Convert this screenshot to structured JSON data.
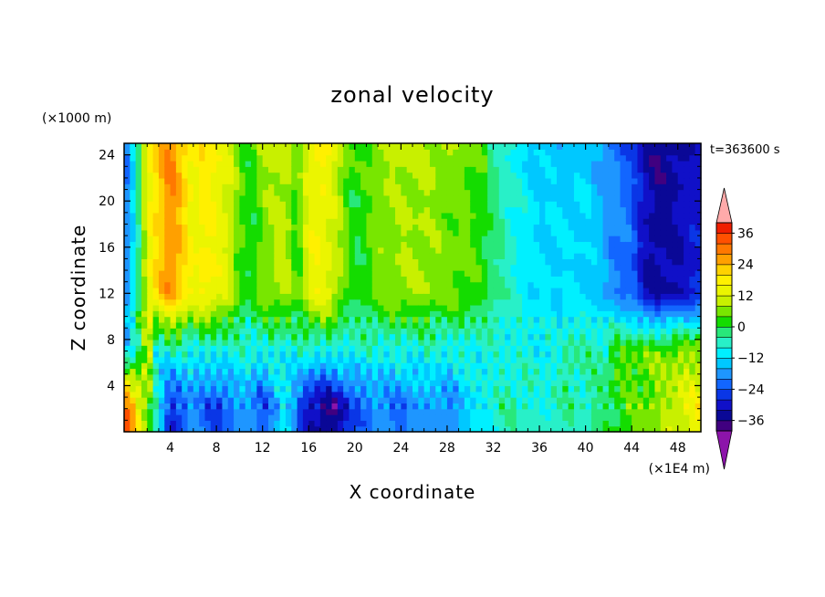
{
  "chart_data": {
    "type": "heatmap",
    "title": "zonal velocity",
    "xlabel": "X coordinate",
    "ylabel": "Z coordinate",
    "x_unit_label": "(×1E4 m)",
    "y_unit_label": "(×1000 m)",
    "time_label": "t=363600 s",
    "xlim": [
      0,
      50
    ],
    "ylim": [
      0,
      25
    ],
    "x_ticks": [
      4,
      8,
      12,
      16,
      20,
      24,
      28,
      32,
      36,
      40,
      44,
      48
    ],
    "y_ticks": [
      4,
      8,
      12,
      16,
      20,
      24
    ],
    "colorbar": {
      "levels": [
        -40,
        -36,
        -32,
        -28,
        -24,
        -20,
        -16,
        -12,
        -8,
        -4,
        0,
        4,
        8,
        12,
        16,
        20,
        24,
        28,
        32,
        36,
        40
      ],
      "labeled_levels": [
        36,
        24,
        12,
        0,
        -12,
        -24,
        -36
      ],
      "colors": [
        "#400080",
        "#0a0896",
        "#1010c8",
        "#0a36e6",
        "#1266ff",
        "#1e96ff",
        "#00c8ff",
        "#00f0ff",
        "#28f0c8",
        "#28e87a",
        "#14dc00",
        "#78e600",
        "#c8f000",
        "#ebf500",
        "#fff000",
        "#ffd200",
        "#ffa000",
        "#ff7800",
        "#ff5000",
        "#f01e00"
      ],
      "under_color": "#8c14aa",
      "over_color": "#ffaaaa"
    },
    "column_profile": {
      "x": [
        0,
        1,
        2,
        4,
        5,
        6,
        7,
        9,
        10,
        11,
        12,
        14,
        15,
        16,
        17,
        18,
        19,
        20,
        22,
        24,
        26,
        28,
        30,
        31,
        32,
        34,
        36,
        38,
        40,
        41,
        42,
        44,
        45,
        46,
        48,
        50
      ],
      "upper_value": [
        -22,
        -8,
        14,
        28,
        22,
        14,
        18,
        12,
        4,
        0,
        6,
        10,
        2,
        14,
        16,
        12,
        6,
        0,
        6,
        8,
        8,
        6,
        4,
        2,
        -2,
        -8,
        -12,
        -12,
        -12,
        -14,
        -18,
        -22,
        -30,
        -34,
        -32,
        -28
      ]
    },
    "boundary_layer": {
      "x": [
        0,
        2,
        4,
        6,
        8,
        10,
        12,
        14,
        16,
        18,
        20,
        22,
        24,
        26,
        28,
        30,
        32,
        34,
        36,
        38,
        40,
        42,
        44,
        46,
        48,
        50
      ],
      "near_surface_value": [
        34,
        6,
        -28,
        -18,
        -26,
        -16,
        -24,
        -10,
        -32,
        -36,
        -24,
        -18,
        -22,
        -16,
        -20,
        -12,
        -6,
        -4,
        -8,
        -4,
        -6,
        0,
        4,
        6,
        12,
        16
      ]
    }
  }
}
